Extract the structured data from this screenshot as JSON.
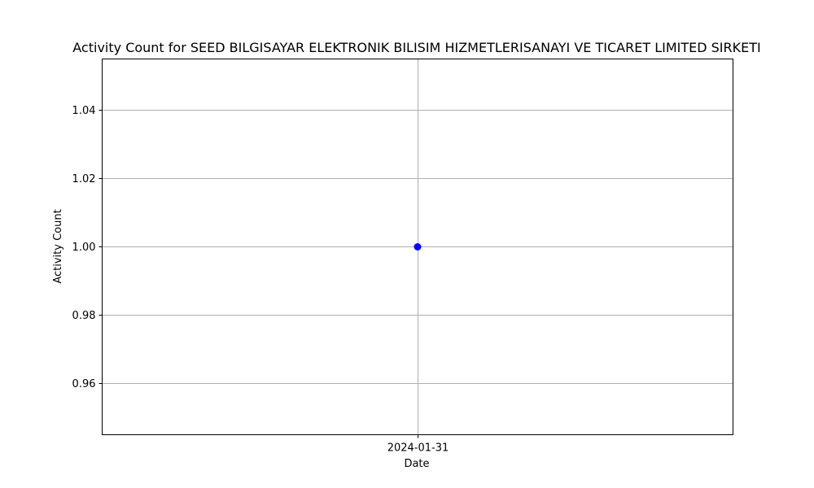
{
  "chart_data": {
    "type": "line",
    "title": "Activity Count for SEED BILGISAYAR ELEKTRONIK BILISIM HIZMETLERISANAYI VE TICARET LIMITED SIRKETI",
    "xlabel": "Date",
    "ylabel": "Activity Count",
    "x": [
      "2024-01-31"
    ],
    "series": [
      {
        "name": "Activity Count",
        "values": [
          1.0
        ],
        "color": "#0000ff",
        "marker": "circle"
      }
    ],
    "ylim": [
      0.945,
      1.055
    ],
    "yticks": [
      0.96,
      0.98,
      1.0,
      1.02,
      1.04
    ],
    "ytick_labels": [
      "0.96",
      "0.98",
      "1.00",
      "1.02",
      "1.04"
    ],
    "xtick_labels": [
      "2024-01-31"
    ],
    "grid": true
  }
}
